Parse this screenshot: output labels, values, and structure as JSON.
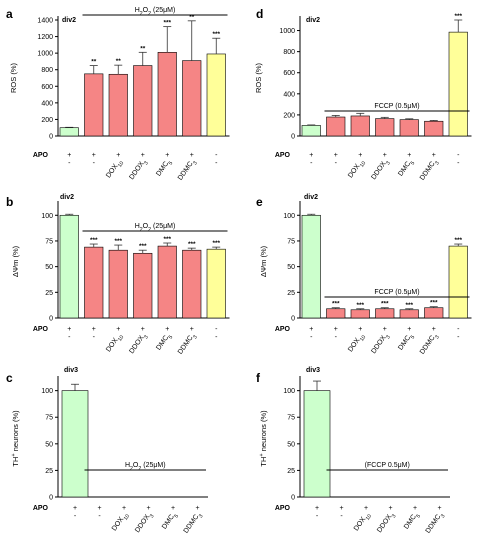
{
  "colors": {
    "green": "#ccffcc",
    "red": "#f58585",
    "yellow": "#ffff99",
    "stroke": "#000000",
    "error": "#333333"
  },
  "row_labels": {
    "apo": "APO",
    "conditions": [
      "DOX10",
      "DDOX3",
      "DMC5",
      "DDMC3"
    ]
  },
  "chart_data": [
    {
      "id": "a",
      "type": "bar",
      "panel_label": "a",
      "div": "div2",
      "ylabel": "ROS (%)",
      "ylim": [
        0,
        1400
      ],
      "yticks": [
        0,
        200,
        400,
        600,
        800,
        1000,
        1200,
        1400
      ],
      "treatment": "H2O2 (25μM)",
      "treatment_span": [
        1,
        6
      ],
      "apo": [
        "+",
        "+",
        "+",
        "+",
        "+",
        "+",
        "-"
      ],
      "cond": [
        "-",
        "-",
        "DOX10",
        "DDOX3",
        "DMC5",
        "DDMC3",
        "-"
      ],
      "values": [
        100,
        750,
        745,
        850,
        1010,
        910,
        990
      ],
      "errors": [
        5,
        100,
        110,
        160,
        310,
        480,
        190
      ],
      "colors": [
        "green",
        "red",
        "red",
        "red",
        "red",
        "red",
        "yellow"
      ],
      "sig": [
        "",
        "**",
        "**",
        "**",
        "***",
        "**",
        "***"
      ]
    },
    {
      "id": "d",
      "type": "bar",
      "panel_label": "d",
      "div": "div2",
      "ylabel": "ROS (%)",
      "ylim": [
        0,
        1100
      ],
      "yticks": [
        0,
        200,
        400,
        600,
        800,
        1000
      ],
      "treatment": "FCCP (0.5μM)",
      "treatment_span": [
        1,
        6
      ],
      "apo": [
        "+",
        "+",
        "+",
        "+",
        "+",
        "+",
        "-"
      ],
      "cond": [
        "-",
        "-",
        "DOX10",
        "DDOX3",
        "DMC5",
        "DDMC3",
        "-"
      ],
      "values": [
        100,
        180,
        190,
        165,
        155,
        140,
        985
      ],
      "errors": [
        5,
        15,
        25,
        12,
        8,
        8,
        115
      ],
      "colors": [
        "green",
        "red",
        "red",
        "red",
        "red",
        "red",
        "yellow"
      ],
      "sig": [
        "",
        "",
        "",
        "",
        "",
        "",
        "***"
      ]
    },
    {
      "id": "b",
      "type": "bar",
      "panel_label": "b",
      "div": "div2",
      "ylabel": "ΔΨm (%)",
      "ylim": [
        0,
        110
      ],
      "yticks": [
        0,
        25,
        50,
        75,
        100
      ],
      "treatment": "H2O2 (25μM)",
      "treatment_span": [
        1,
        6
      ],
      "apo": [
        "+",
        "+",
        "+",
        "+",
        "+",
        "+",
        "-"
      ],
      "cond": [
        "-",
        "-",
        "DOX10",
        "DDOX3",
        "DMC5",
        "DDMC3",
        "-"
      ],
      "values": [
        100,
        69,
        66,
        63,
        70,
        66,
        67
      ],
      "errors": [
        1,
        3,
        5,
        3,
        3,
        2,
        2
      ],
      "colors": [
        "green",
        "red",
        "red",
        "red",
        "red",
        "red",
        "yellow"
      ],
      "sig": [
        "",
        "***",
        "***",
        "***",
        "***",
        "***",
        "***"
      ]
    },
    {
      "id": "e",
      "type": "bar",
      "panel_label": "e",
      "div": "div2",
      "ylabel": "ΔΨm (%)",
      "ylim": [
        0,
        110
      ],
      "yticks": [
        0,
        25,
        50,
        75,
        100
      ],
      "treatment": "FCCP (0.5μM)",
      "treatment_span": [
        1,
        6
      ],
      "apo": [
        "+",
        "+",
        "+",
        "+",
        "+",
        "+",
        "-"
      ],
      "cond": [
        "-",
        "-",
        "DOX10",
        "DDOX3",
        "DMC5",
        "DDMC3",
        "-"
      ],
      "values": [
        100,
        9,
        8,
        9,
        8,
        10,
        70
      ],
      "errors": [
        1,
        1,
        1,
        1,
        1,
        1,
        2
      ],
      "colors": [
        "green",
        "red",
        "red",
        "red",
        "red",
        "red",
        "yellow"
      ],
      "sig": [
        "",
        "***",
        "***",
        "***",
        "***",
        "***",
        "***"
      ]
    },
    {
      "id": "c",
      "type": "bar",
      "panel_label": "c",
      "div": "div3",
      "ylabel": "TH+ neurons (%)",
      "ylim": [
        0,
        110
      ],
      "yticks": [
        0,
        25,
        50,
        75,
        100
      ],
      "treatment": "H2O2 (25μM)",
      "treatment_span": [
        1,
        5
      ],
      "apo": [
        "+",
        "+",
        "+",
        "+",
        "+",
        "+"
      ],
      "cond": [
        "-",
        "-",
        "DOX10",
        "DDOX3",
        "DMC5",
        "DDMC3"
      ],
      "values": [
        100,
        0,
        0,
        0,
        0,
        0
      ],
      "errors": [
        6,
        0,
        0,
        0,
        0,
        0
      ],
      "colors": [
        "green",
        "red",
        "red",
        "red",
        "red",
        "red"
      ],
      "sig": [
        "",
        "",
        "",
        "",
        "",
        ""
      ]
    },
    {
      "id": "f",
      "type": "bar",
      "panel_label": "f",
      "div": "div3",
      "ylabel": "TH+ neurons (%)",
      "ylim": [
        0,
        110
      ],
      "yticks": [
        0,
        25,
        50,
        75,
        100
      ],
      "treatment": "(FCCP 0.5μM)",
      "treatment_span": [
        1,
        5
      ],
      "apo": [
        "+",
        "+",
        "+",
        "+",
        "+",
        "+"
      ],
      "cond": [
        "-",
        "-",
        "DOX10",
        "DDOX3",
        "DMC5",
        "DDMC3"
      ],
      "values": [
        100,
        0,
        0,
        0,
        0,
        0
      ],
      "errors": [
        9,
        0,
        0,
        0,
        0,
        0
      ],
      "colors": [
        "green",
        "red",
        "red",
        "red",
        "red",
        "red"
      ],
      "sig": [
        "",
        "",
        "",
        "",
        "",
        ""
      ]
    }
  ]
}
